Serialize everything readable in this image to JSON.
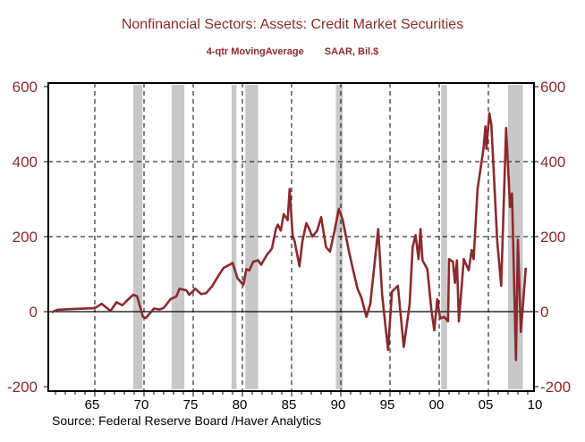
{
  "title": "Nonfinancial Sectors: Assets: Credit Market Securities",
  "subtitle_left": "4-qtr MovingAverage",
  "subtitle_right": "SAAR, Bil.$",
  "source": "Source:  Federal Reserve Board /Haver Analytics",
  "chart_data": {
    "type": "line",
    "title": "Nonfinancial Sectors: Assets: Credit Market Securities",
    "ylabel": "SAAR, Bil.$",
    "xlim": [
      1960.3,
      2009.6
    ],
    "ylim": [
      -200,
      600
    ],
    "yticks": [
      -200,
      0,
      200,
      400,
      600
    ],
    "ytick_labels": [
      "-200",
      "0",
      "200",
      "400",
      "600"
    ],
    "xticks": [
      1965,
      1970,
      1975,
      1980,
      1985,
      1990,
      1995,
      2000,
      2005,
      2010
    ],
    "xtick_labels": [
      "65",
      "70",
      "75",
      "80",
      "85",
      "90",
      "95",
      "00",
      "05",
      "10"
    ],
    "grid": "dashed",
    "right_axis": true,
    "colors": {
      "line": "#8B2A2E",
      "text": "#8B2B2B",
      "recession": "#C8C8C8"
    },
    "recession_shading": [
      [
        1968.9,
        1969.85
      ],
      [
        1972.8,
        1974.1
      ],
      [
        1978.9,
        1979.4
      ],
      [
        1980.3,
        1981.6
      ],
      [
        1989.5,
        1990.2
      ],
      [
        2000.2,
        2000.8
      ],
      [
        2007.0,
        2008.5
      ]
    ],
    "series": [
      {
        "x": [
          1960.6,
          1961.2,
          1962.7,
          1964.8,
          1965.1,
          1965.7,
          1966.6,
          1967.2,
          1967.8,
          1968.1,
          1968.9,
          1969.3,
          1969.9,
          1970.2,
          1971.0,
          1971.6,
          1972.0,
          1972.7,
          1973.3,
          1973.6,
          1974.3,
          1974.6,
          1975.2,
          1975.8,
          1976.3,
          1976.9,
          1977.5,
          1978.1,
          1978.7,
          1979.0,
          1979.5,
          1980.1,
          1980.4,
          1980.7,
          1981.1,
          1981.6,
          1981.9,
          1982.5,
          1983.0,
          1983.4,
          1983.6,
          1983.9,
          1984.2,
          1984.6,
          1984.8,
          1985.1,
          1985.3,
          1985.8,
          1986.1,
          1986.5,
          1986.8,
          1987.1,
          1987.6,
          1988.0,
          1988.5,
          1988.9,
          1989.4,
          1989.8,
          1990.2,
          1990.8,
          1991.2,
          1991.7,
          1992.1,
          1992.6,
          1993.0,
          1993.8,
          1994.2,
          1994.8,
          1995.2,
          1995.8,
          1996.4,
          1997.0,
          1997.3,
          1997.6,
          1997.9,
          1998.1,
          1998.3,
          1998.8,
          1999.2,
          1999.5,
          1999.8,
          2000.1,
          2000.5,
          2000.9,
          2001.0,
          2001.4,
          2001.6,
          2001.8,
          2002.0,
          2002.5,
          2003.0,
          2003.3,
          2003.5,
          2003.9,
          2004.5,
          2004.7,
          2004.8,
          2005.1,
          2005.3,
          2005.9,
          2006.3,
          2006.8,
          2007.2,
          2007.4,
          2007.8,
          2008.0,
          2008.3,
          2008.8
        ],
        "y": [
          -2,
          5,
          7,
          9,
          11,
          21,
          2,
          25,
          17,
          25,
          45,
          41,
          -14,
          -17,
          8,
          6,
          10,
          33,
          41,
          61,
          57,
          45,
          61,
          47,
          49,
          67,
          93,
          117,
          125,
          130,
          89,
          71,
          113,
          110,
          133,
          137,
          125,
          152,
          168,
          220,
          232,
          216,
          260,
          244,
          327,
          204,
          188,
          121,
          188,
          236,
          220,
          200,
          216,
          252,
          172,
          160,
          220,
          274,
          244,
          164,
          117,
          61,
          37,
          -14,
          21,
          220,
          45,
          -102,
          53,
          69,
          -94,
          21,
          172,
          204,
          140,
          220,
          137,
          113,
          6,
          -50,
          33,
          -18,
          -14,
          -26,
          140,
          133,
          77,
          137,
          -26,
          140,
          110,
          164,
          140,
          327,
          434,
          494,
          434,
          529,
          498,
          188,
          69,
          490,
          279,
          315,
          -129,
          192,
          -54,
          117
        ]
      }
    ]
  }
}
